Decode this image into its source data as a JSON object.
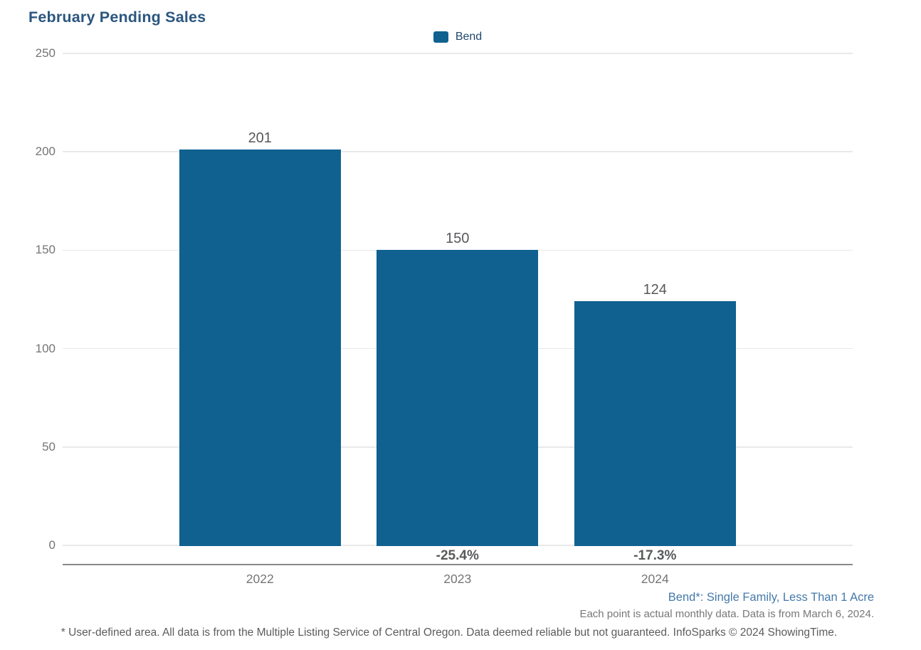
{
  "title": "February Pending Sales",
  "legend": {
    "items": [
      {
        "label": "Bend",
        "color": "#10618f"
      }
    ]
  },
  "chart_data": {
    "type": "bar",
    "title": "February Pending Sales",
    "categories": [
      "2022",
      "2023",
      "2024"
    ],
    "series": [
      {
        "name": "Bend",
        "color": "#10618f",
        "values": [
          201,
          150,
          124
        ]
      }
    ],
    "value_labels": [
      "201",
      "150",
      "124"
    ],
    "pct_change_labels": [
      null,
      "-25.4%",
      "-17.3%"
    ],
    "yticks": [
      0,
      50,
      100,
      150,
      200,
      250
    ],
    "ylim": [
      0,
      250
    ],
    "xlabel": "",
    "ylabel": "",
    "grid": "horizontal",
    "legend_position": "top-center"
  },
  "footnotes": {
    "series_definition": "Bend*: Single Family, Less Than 1 Acre",
    "data_note": "Each point is actual monthly data. Data is from March 6, 2024.",
    "disclaimer": "* User-defined area. All data is from the Multiple Listing Service of Central Oregon. Data deemed reliable but not guaranteed. InfoSparks © 2024 ShowingTime."
  },
  "colors": {
    "bar": "#10618f",
    "title_text": "#2b567f",
    "legend_text": "#22486d",
    "footnote_blue": "#4579ab",
    "axis_line": "#8a8a8a",
    "gridline": "#e9e9e9",
    "tick_label": "#757575",
    "value_label": "#57585a",
    "pct_label": "#58595b"
  }
}
